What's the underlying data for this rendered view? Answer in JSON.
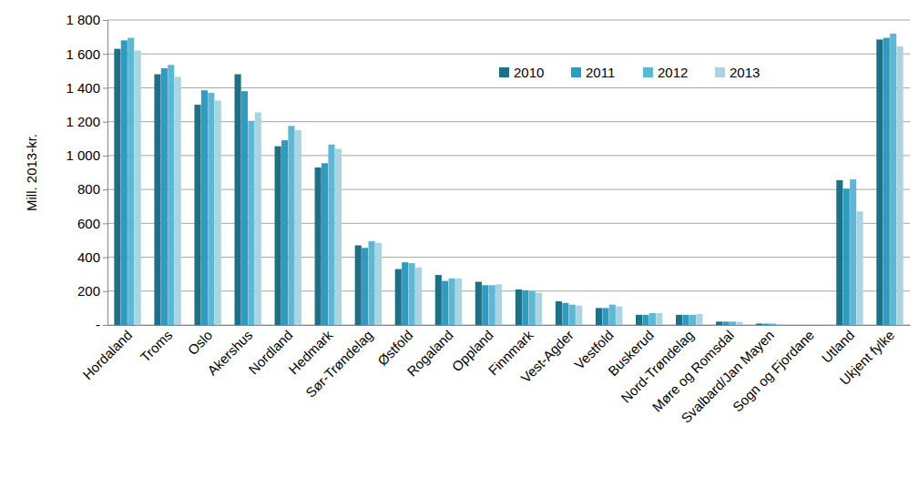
{
  "chart_data": {
    "type": "bar",
    "y_label": "Mill. 2013-kr.",
    "categories": [
      "Hordaland",
      "Troms",
      "Oslo",
      "Akershus",
      "Nordland",
      "Hedmark",
      "Sør-Trøndelag",
      "Østfold",
      "Rogaland",
      "Oppland",
      "Finnmark",
      "Vest-Agder",
      "Vestfold",
      "Buskerud",
      "Nord-Trøndelag",
      "Møre og Romsdal",
      "Svalbard/Jan Mayen",
      "Sogn og Fjordane",
      "Utland",
      "Ukjent fylke"
    ],
    "series": [
      {
        "name": "2010",
        "color": "#1f6f86",
        "values": [
          1630,
          1480,
          1300,
          1480,
          1055,
          930,
          470,
          330,
          295,
          255,
          210,
          140,
          100,
          60,
          60,
          20,
          8,
          0,
          855,
          1685
        ]
      },
      {
        "name": "2011",
        "color": "#2e9bbf",
        "values": [
          1680,
          1515,
          1385,
          1380,
          1090,
          955,
          455,
          370,
          260,
          235,
          205,
          130,
          100,
          60,
          60,
          20,
          8,
          0,
          805,
          1695
        ]
      },
      {
        "name": "2012",
        "color": "#5db8d5",
        "values": [
          1695,
          1535,
          1370,
          1205,
          1175,
          1065,
          495,
          365,
          275,
          235,
          200,
          120,
          120,
          70,
          60,
          20,
          8,
          0,
          860,
          1720
        ]
      },
      {
        "name": "2013",
        "color": "#a9d4e2",
        "values": [
          1620,
          1465,
          1325,
          1255,
          1150,
          1040,
          485,
          340,
          275,
          240,
          190,
          115,
          110,
          70,
          65,
          18,
          6,
          0,
          670,
          1645
        ]
      }
    ],
    "ylim": [
      0,
      1800
    ],
    "yticks": [
      {
        "value": 0,
        "label": "-"
      },
      200,
      400,
      600,
      800,
      {
        "value": 1000,
        "label": "1 000"
      },
      {
        "value": 1200,
        "label": "1 200"
      },
      {
        "value": 1400,
        "label": "1 400"
      },
      {
        "value": 1600,
        "label": "1 600"
      },
      {
        "value": 1800,
        "label": "1 800"
      }
    ],
    "grid": true,
    "legend": "top"
  }
}
